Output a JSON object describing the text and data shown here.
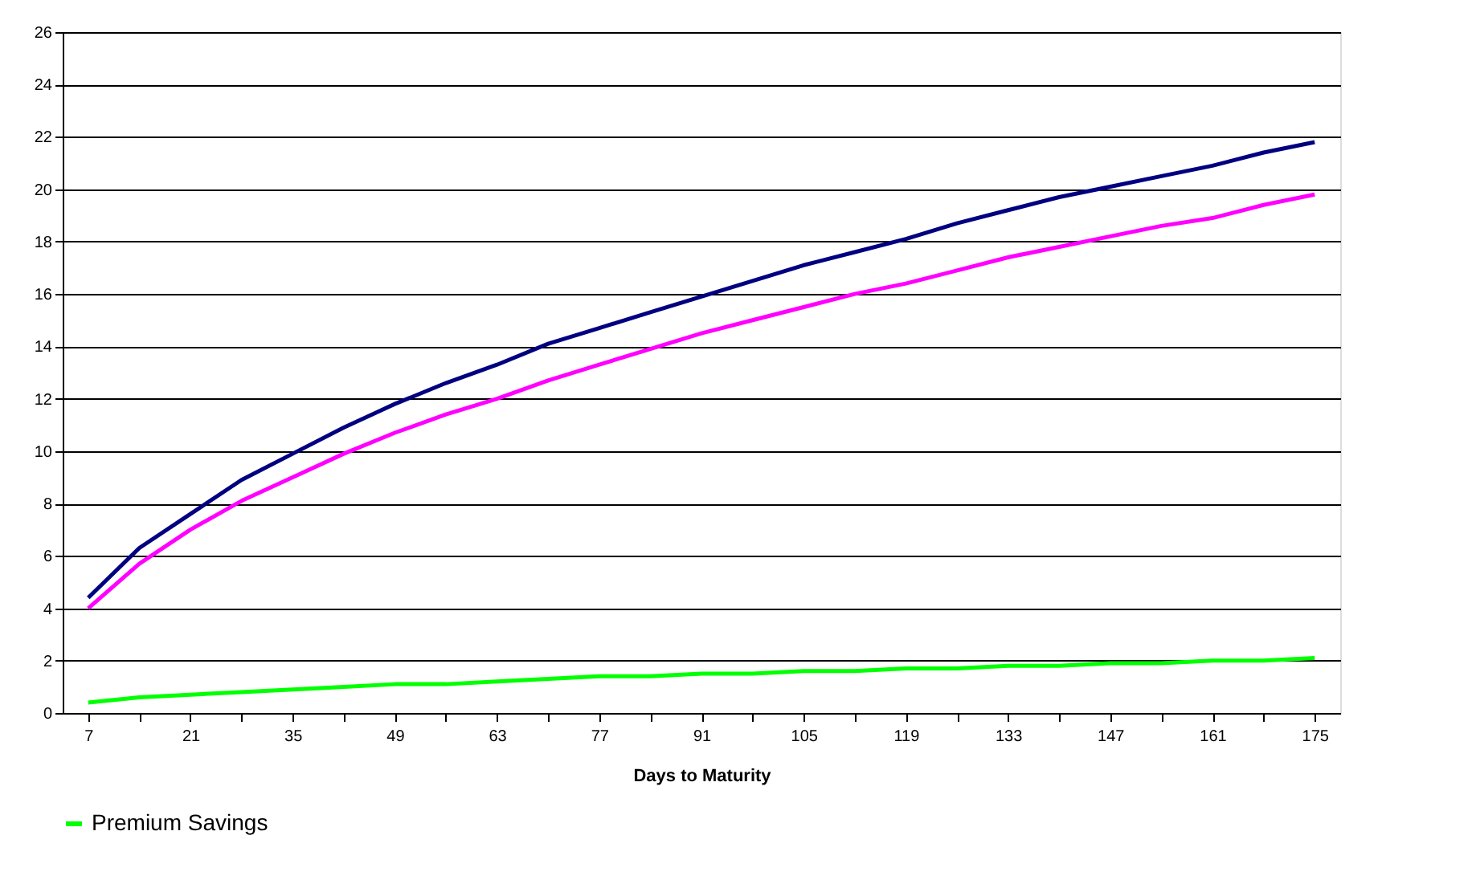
{
  "chart_data": {
    "type": "line",
    "xlabel": "Days to Maturity",
    "categories": [
      "7",
      null,
      "21",
      null,
      "35",
      null,
      "49",
      null,
      "63",
      null,
      "77",
      null,
      "91",
      null,
      "105",
      null,
      "119",
      null,
      "133",
      null,
      "147",
      null,
      "161",
      null,
      "175"
    ],
    "series": [
      {
        "color": "#000080",
        "values": [
          4.4,
          6.3,
          7.6,
          8.9,
          9.9,
          10.9,
          11.8,
          12.6,
          13.3,
          14.1,
          14.7,
          15.3,
          15.9,
          16.5,
          17.1,
          17.6,
          18.1,
          18.7,
          19.2,
          19.7,
          20.1,
          20.5,
          20.9,
          21.4,
          21.8
        ]
      },
      {
        "color": "#ff00ff",
        "values": [
          4.0,
          5.7,
          7.0,
          8.1,
          9.0,
          9.9,
          10.7,
          11.4,
          12.0,
          12.7,
          13.3,
          13.9,
          14.5,
          15.0,
          15.5,
          16.0,
          16.4,
          16.9,
          17.4,
          17.8,
          18.2,
          18.6,
          18.9,
          19.4,
          19.8
        ]
      },
      {
        "name": "Premium Savings",
        "color": "#00ff00",
        "values": [
          0.4,
          0.6,
          0.7,
          0.8,
          0.9,
          1.0,
          1.1,
          1.1,
          1.2,
          1.3,
          1.4,
          1.4,
          1.5,
          1.5,
          1.6,
          1.6,
          1.7,
          1.7,
          1.8,
          1.8,
          1.9,
          1.9,
          2.0,
          2.0,
          2.1
        ]
      }
    ],
    "ylim": [
      0,
      26
    ],
    "yticks": [
      0,
      2,
      4,
      6,
      8,
      10,
      12,
      14,
      16,
      18,
      20,
      22,
      24,
      26
    ],
    "grid": "y",
    "legend": "bottom",
    "marker": "none",
    "line_style": "solid"
  }
}
